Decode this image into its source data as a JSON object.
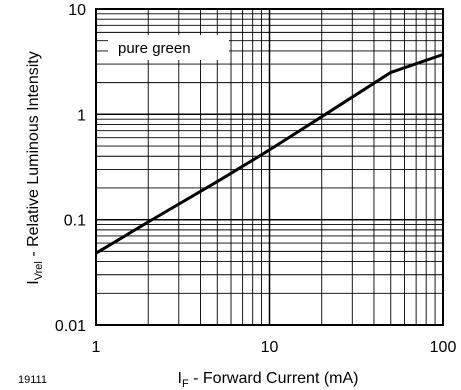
{
  "figure_id": "19111",
  "chart_data": {
    "type": "line",
    "xscale": "log",
    "yscale": "log",
    "xlim": [
      1,
      100
    ],
    "ylim": [
      0.01,
      10
    ],
    "grid": true,
    "legend_placement": "top-left",
    "xlabel_main": "I",
    "xlabel_sub": "F",
    "xlabel_rest": " - Forward Current (mA)",
    "ylabel_main": "I",
    "ylabel_sub": "Vrel",
    "ylabel_rest": " - Relative Luminous Intensity",
    "x_ticks": [
      "1",
      "10",
      "100"
    ],
    "y_ticks": [
      "0.01",
      "0.1",
      "1",
      "10"
    ],
    "series": [
      {
        "name": "pure green",
        "color": "#000000",
        "x": [
          1,
          2,
          5,
          10,
          20,
          50,
          100
        ],
        "y": [
          0.048,
          0.095,
          0.23,
          0.46,
          0.95,
          2.5,
          3.7
        ]
      }
    ]
  }
}
